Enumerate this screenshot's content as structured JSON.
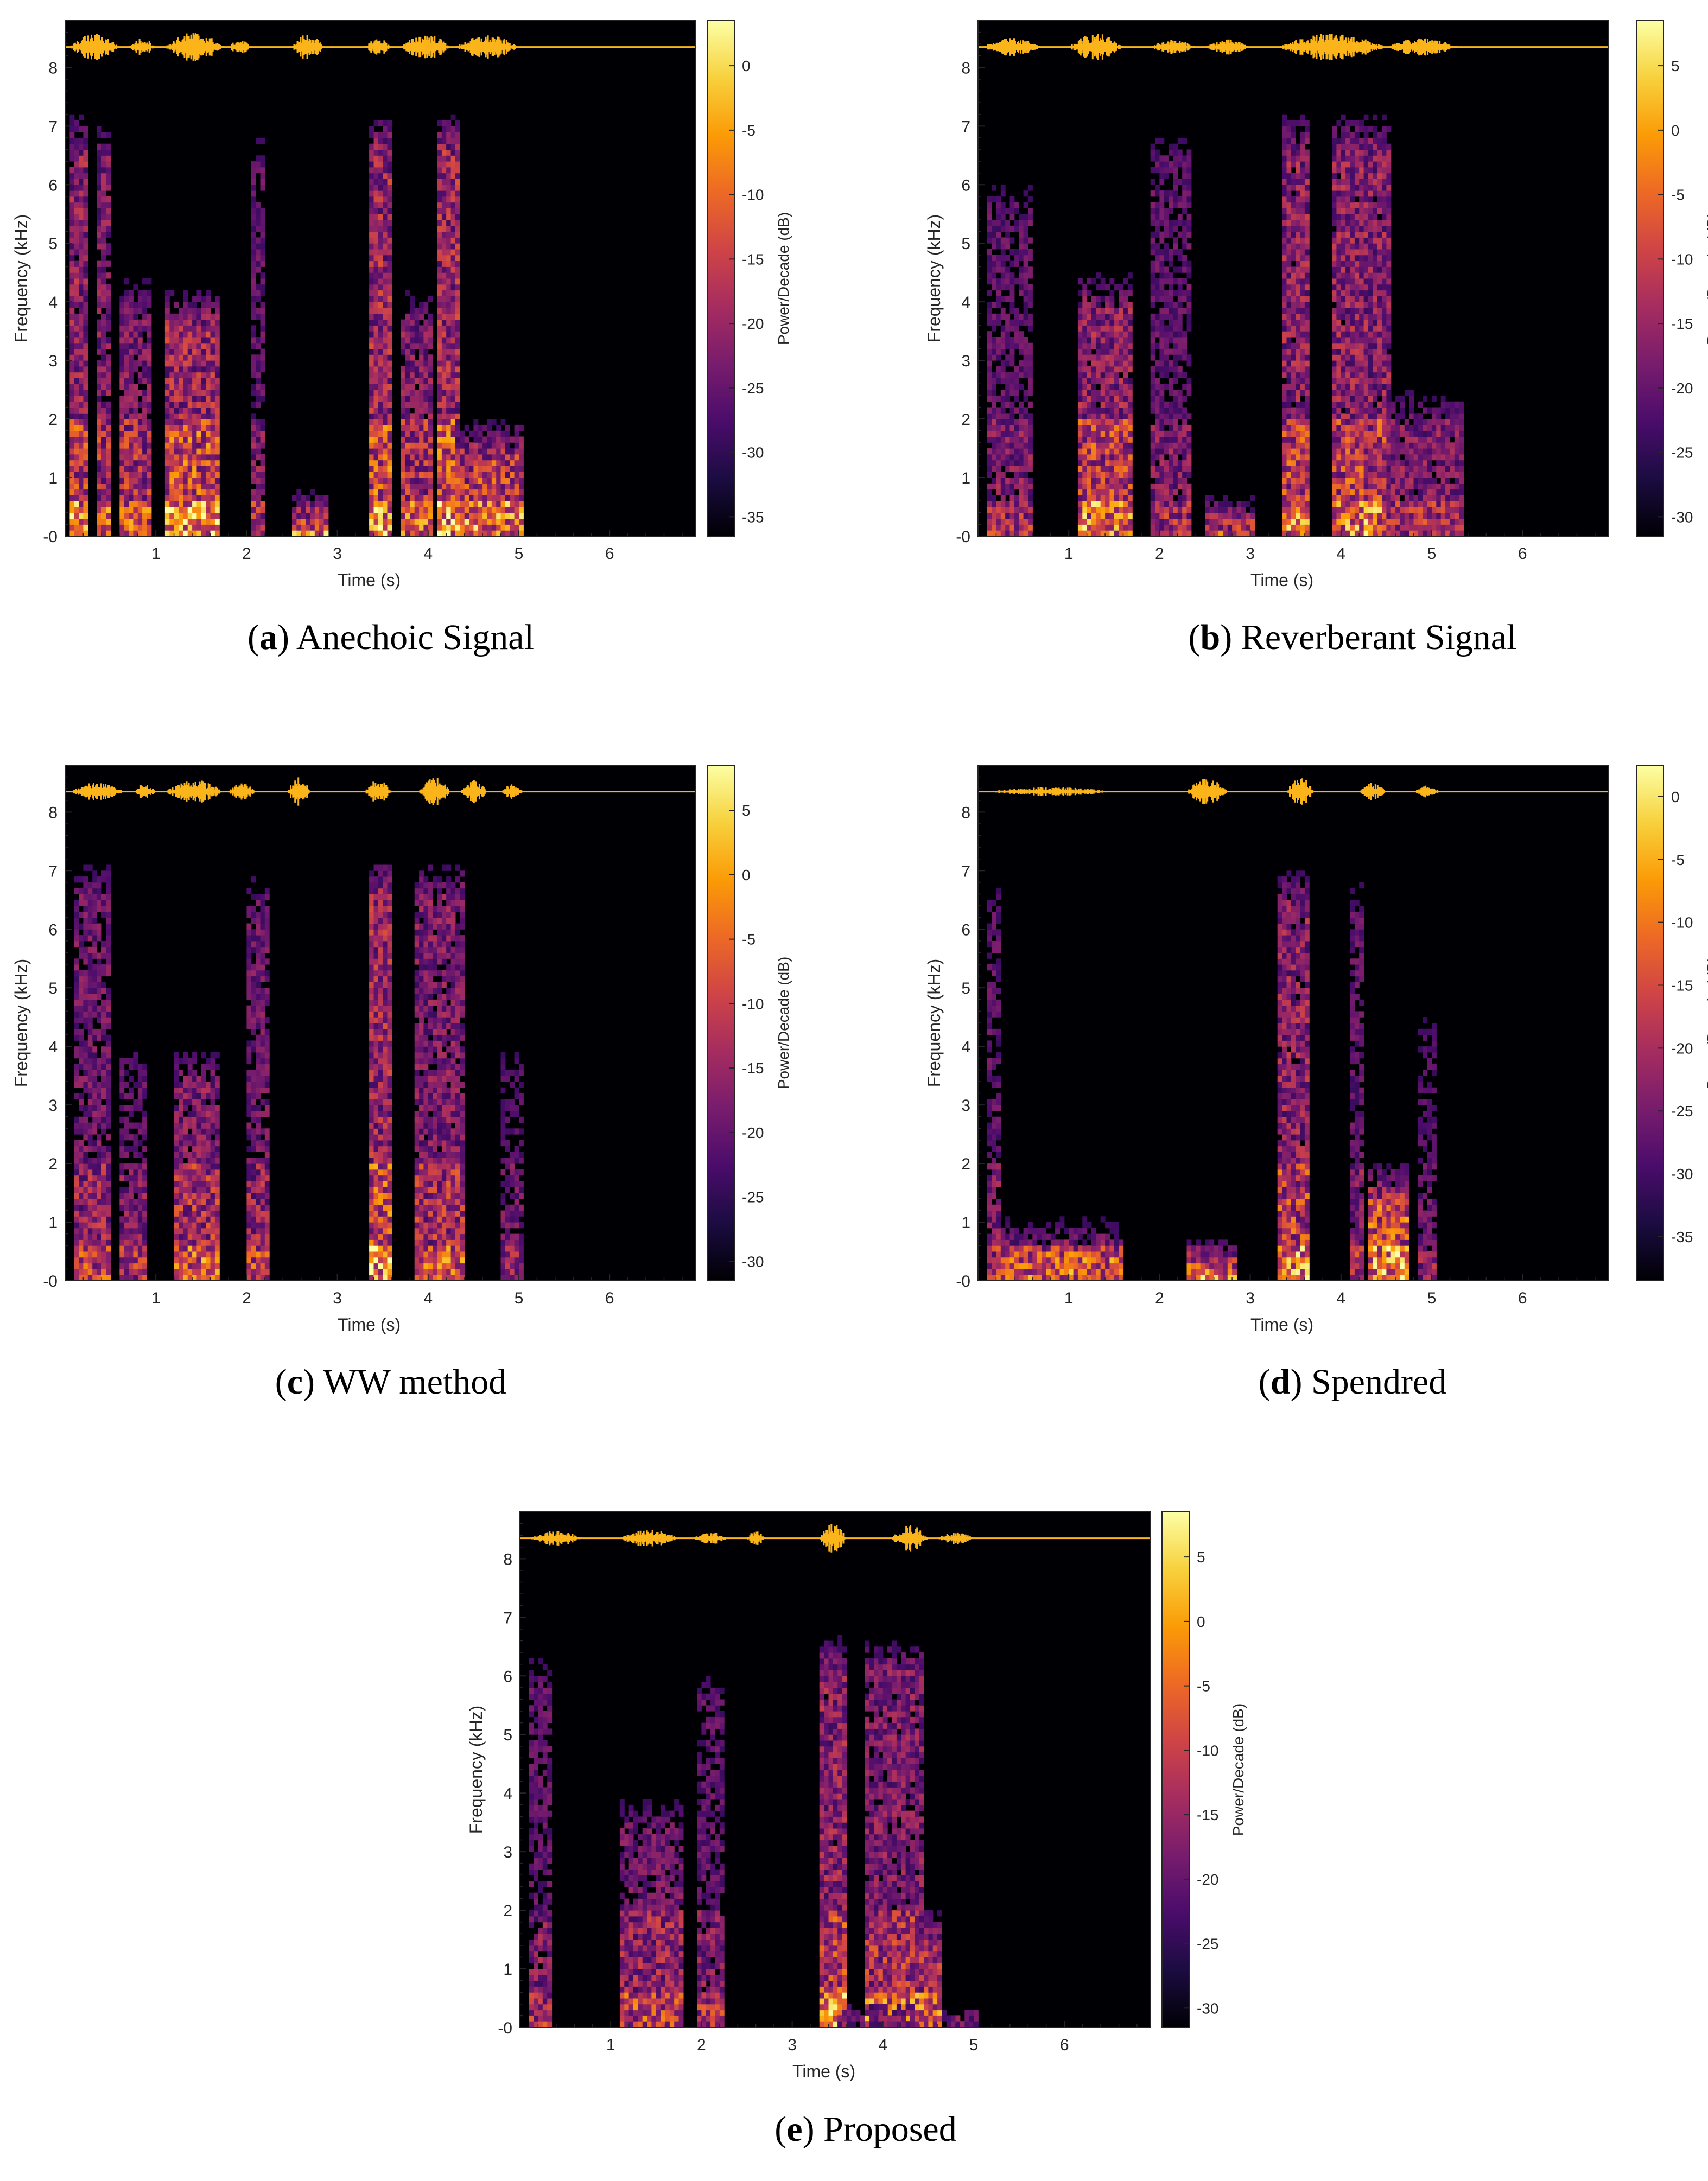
{
  "figure": {
    "description_free": true
  },
  "colormap": [
    "#000004",
    "#1b0c41",
    "#4a0c6b",
    "#781c6d",
    "#a52c60",
    "#cf4446",
    "#ed6925",
    "#fb9b06",
    "#f7d13d",
    "#fcffa4"
  ],
  "waveform_color": "#fbb41a",
  "chart_data": [
    {
      "id": "a",
      "type": "heatmap",
      "caption_letter": "a",
      "caption_text": "Anechoic Signal",
      "xlabel": "Time (s)",
      "ylabel": "Frequency (kHz)",
      "colorbar_label": "Power/Decade (dB)",
      "xlim": [
        0,
        6.95
      ],
      "ylim": [
        0,
        8.8
      ],
      "xticks": [
        1,
        2,
        3,
        4,
        5,
        6
      ],
      "yticks": [
        0,
        1,
        2,
        3,
        4,
        5,
        6,
        7,
        8
      ],
      "ytick_labels": [
        "-0",
        "1",
        "2",
        "3",
        "4",
        "5",
        "6",
        "7",
        "8"
      ],
      "clim": [
        -36.5,
        3.5
      ],
      "colorbar_ticks": [
        0,
        -5,
        -10,
        -15,
        -20,
        -25,
        -30,
        -35
      ],
      "signal_end_s": 5.0,
      "waveform_bursts": [
        [
          0.05,
          0.6,
          0.9
        ],
        [
          0.7,
          1.0,
          0.6
        ],
        [
          1.1,
          1.75,
          1.0
        ],
        [
          1.8,
          2.05,
          0.5
        ],
        [
          2.5,
          2.85,
          0.9
        ],
        [
          3.3,
          3.6,
          0.6
        ],
        [
          3.7,
          4.25,
          0.9
        ],
        [
          4.3,
          5.0,
          0.8
        ]
      ],
      "segments": [
        {
          "t0": 0.05,
          "t1": 0.25,
          "f0": 0.0,
          "f1": 7.5,
          "i": 0.9
        },
        {
          "t0": 0.35,
          "t1": 0.45,
          "f0": 0.0,
          "f1": 7.4,
          "i": 0.8
        },
        {
          "t0": 0.6,
          "t1": 0.95,
          "f0": 0.0,
          "f1": 4.7,
          "i": 0.8
        },
        {
          "t0": 1.1,
          "t1": 1.7,
          "f0": 0.0,
          "f1": 4.5,
          "i": 1.0
        },
        {
          "t0": 2.05,
          "t1": 2.15,
          "f0": 0.0,
          "f1": 7.3,
          "i": 0.6
        },
        {
          "t0": 2.5,
          "t1": 2.85,
          "f0": 0.0,
          "f1": 1.0,
          "i": 0.9
        },
        {
          "t0": 3.35,
          "t1": 3.55,
          "f0": 0.0,
          "f1": 7.5,
          "i": 1.0
        },
        {
          "t0": 3.7,
          "t1": 4.0,
          "f0": 0.0,
          "f1": 4.5,
          "i": 0.8
        },
        {
          "t0": 4.1,
          "t1": 4.3,
          "f0": 0.0,
          "f1": 7.5,
          "i": 1.0
        },
        {
          "t0": 4.3,
          "t1": 5.0,
          "f0": 0.0,
          "f1": 2.2,
          "i": 0.9
        }
      ]
    },
    {
      "id": "b",
      "type": "heatmap",
      "caption_letter": "b",
      "caption_text": "Reverberant Signal",
      "xlabel": "Time (s)",
      "ylabel": "Frequency (kHz)",
      "colorbar_label": "Power/Decade (dB)",
      "xlim": [
        0,
        6.95
      ],
      "ylim": [
        0,
        8.8
      ],
      "xticks": [
        1,
        2,
        3,
        4,
        5,
        6
      ],
      "yticks": [
        0,
        1,
        2,
        3,
        4,
        5,
        6,
        7,
        8
      ],
      "ytick_labels": [
        "-0",
        "1",
        "2",
        "3",
        "4",
        "5",
        "6",
        "7",
        "8"
      ],
      "clim": [
        -31.5,
        8.5
      ],
      "colorbar_ticks": [
        5,
        0,
        -5,
        -10,
        -15,
        -20,
        -25,
        -30
      ],
      "signal_end_s": 5.3,
      "waveform_bursts": [
        [
          0.05,
          0.7,
          0.6
        ],
        [
          1.0,
          1.6,
          0.9
        ],
        [
          1.9,
          2.4,
          0.5
        ],
        [
          2.5,
          3.0,
          0.5
        ],
        [
          3.3,
          4.5,
          0.9
        ],
        [
          4.5,
          5.3,
          0.6
        ]
      ],
      "segments": [
        {
          "t0": 0.1,
          "t1": 0.6,
          "f0": 0.0,
          "f1": 6.5,
          "i": 0.6
        },
        {
          "t0": 1.1,
          "t1": 1.7,
          "f0": 0.0,
          "f1": 4.8,
          "i": 0.9
        },
        {
          "t0": 1.9,
          "t1": 2.3,
          "f0": 0.0,
          "f1": 7.3,
          "i": 0.6
        },
        {
          "t0": 2.5,
          "t1": 3.0,
          "f0": 0.0,
          "f1": 1.0,
          "i": 0.7
        },
        {
          "t0": 3.35,
          "t1": 3.6,
          "f0": 0.0,
          "f1": 7.5,
          "i": 0.9
        },
        {
          "t0": 3.9,
          "t1": 4.5,
          "f0": 0.0,
          "f1": 7.5,
          "i": 0.9
        },
        {
          "t0": 4.5,
          "t1": 5.3,
          "f0": 0.0,
          "f1": 3.0,
          "i": 0.6
        }
      ]
    },
    {
      "id": "c",
      "type": "heatmap",
      "caption_letter": "c",
      "caption_text": "WW method",
      "xlabel": "Time (s)",
      "ylabel": "Frequency (kHz)",
      "colorbar_label": "Power/Decade (dB)",
      "xlim": [
        0,
        6.95
      ],
      "ylim": [
        0,
        8.8
      ],
      "xticks": [
        1,
        2,
        3,
        4,
        5,
        6
      ],
      "yticks": [
        0,
        1,
        2,
        3,
        4,
        5,
        6,
        7,
        8
      ],
      "ytick_labels": [
        "-0",
        "1",
        "2",
        "3",
        "4",
        "5",
        "6",
        "7",
        "8"
      ],
      "clim": [
        -31.5,
        8.5
      ],
      "colorbar_ticks": [
        5,
        0,
        -5,
        -10,
        -15,
        -20,
        -25,
        -30
      ],
      "signal_end_s": 5.3,
      "waveform_bursts": [
        [
          0.05,
          0.65,
          0.6
        ],
        [
          0.75,
          1.0,
          0.5
        ],
        [
          1.1,
          1.75,
          0.8
        ],
        [
          1.8,
          2.1,
          0.6
        ],
        [
          2.45,
          2.7,
          1.0
        ],
        [
          3.3,
          3.6,
          0.8
        ],
        [
          3.9,
          4.25,
          1.0
        ],
        [
          4.35,
          4.65,
          0.8
        ],
        [
          4.8,
          5.05,
          0.5
        ]
      ],
      "segments": [
        {
          "t0": 0.1,
          "t1": 0.45,
          "f0": 0.0,
          "f1": 7.5,
          "i": 0.7
        },
        {
          "t0": 0.6,
          "t1": 0.9,
          "f0": 0.0,
          "f1": 4.5,
          "i": 0.6
        },
        {
          "t0": 1.2,
          "t1": 1.7,
          "f0": 0.0,
          "f1": 4.3,
          "i": 0.8
        },
        {
          "t0": 2.0,
          "t1": 2.2,
          "f0": 0.0,
          "f1": 7.3,
          "i": 0.7
        },
        {
          "t0": 3.35,
          "t1": 3.55,
          "f0": 0.0,
          "f1": 7.5,
          "i": 1.0
        },
        {
          "t0": 3.85,
          "t1": 4.35,
          "f0": 0.0,
          "f1": 7.5,
          "i": 0.8
        },
        {
          "t0": 4.8,
          "t1": 5.0,
          "f0": 0.0,
          "f1": 4.5,
          "i": 0.5
        }
      ]
    },
    {
      "id": "d",
      "type": "heatmap",
      "caption_letter": "d",
      "caption_text": "Spendred",
      "xlabel": "Time (s)",
      "ylabel": "Frequency (kHz)",
      "colorbar_label": "Power/Decade (dB)",
      "xlim": [
        0,
        6.95
      ],
      "ylim": [
        0,
        8.8
      ],
      "xticks": [
        1,
        2,
        3,
        4,
        5,
        6
      ],
      "yticks": [
        0,
        1,
        2,
        3,
        4,
        5,
        6,
        7,
        8
      ],
      "ytick_labels": [
        "-0",
        "1",
        "2",
        "3",
        "4",
        "5",
        "6",
        "7",
        "8"
      ],
      "clim": [
        -38.5,
        2.5
      ],
      "colorbar_ticks": [
        0,
        -5,
        -10,
        -15,
        -20,
        -25,
        -30,
        -35
      ],
      "signal_end_s": 5.2,
      "waveform_bursts": [
        [
          0.1,
          1.5,
          0.3
        ],
        [
          2.3,
          2.75,
          0.9
        ],
        [
          3.4,
          3.7,
          1.0
        ],
        [
          4.2,
          4.5,
          0.6
        ],
        [
          4.8,
          5.1,
          0.4
        ]
      ],
      "segments": [
        {
          "t0": 0.1,
          "t1": 0.25,
          "f0": 0.0,
          "f1": 7.2,
          "i": 0.6
        },
        {
          "t0": 0.2,
          "t1": 1.6,
          "f0": 0.0,
          "f1": 1.3,
          "i": 0.8
        },
        {
          "t0": 2.3,
          "t1": 2.8,
          "f0": 0.0,
          "f1": 0.9,
          "i": 1.0
        },
        {
          "t0": 3.3,
          "t1": 3.6,
          "f0": 0.0,
          "f1": 7.3,
          "i": 0.9
        },
        {
          "t0": 4.1,
          "t1": 4.2,
          "f0": 0.0,
          "f1": 7.3,
          "i": 0.6
        },
        {
          "t0": 4.3,
          "t1": 4.7,
          "f0": 0.0,
          "f1": 2.2,
          "i": 1.0
        },
        {
          "t0": 4.85,
          "t1": 5.0,
          "f0": 0.0,
          "f1": 5.0,
          "i": 0.5
        }
      ]
    },
    {
      "id": "e",
      "type": "heatmap",
      "caption_letter": "e",
      "caption_text": "Proposed",
      "xlabel": "Time (s)",
      "ylabel": "Frequency (kHz)",
      "colorbar_label": "Power/Decade (dB)",
      "xlim": [
        0,
        6.95
      ],
      "ylim": [
        0,
        8.8
      ],
      "xticks": [
        1,
        2,
        3,
        4,
        5,
        6
      ],
      "yticks": [
        0,
        1,
        2,
        3,
        4,
        5,
        6,
        7,
        8
      ],
      "ytick_labels": [
        "-0",
        "1",
        "2",
        "3",
        "4",
        "5",
        "6",
        "7",
        "8"
      ],
      "clim": [
        -31.5,
        8.5
      ],
      "colorbar_ticks": [
        5,
        0,
        -5,
        -10,
        -15,
        -20,
        -25,
        -30
      ],
      "signal_end_s": 5.1,
      "waveform_bursts": [
        [
          0.1,
          0.7,
          0.5
        ],
        [
          1.1,
          1.75,
          0.6
        ],
        [
          1.9,
          2.3,
          0.4
        ],
        [
          2.5,
          2.7,
          0.5
        ],
        [
          3.3,
          3.6,
          1.0
        ],
        [
          4.1,
          4.5,
          0.9
        ],
        [
          4.6,
          5.0,
          0.4
        ]
      ],
      "segments": [
        {
          "t0": 0.1,
          "t1": 0.35,
          "f0": 0.0,
          "f1": 6.8,
          "i": 0.6
        },
        {
          "t0": 1.1,
          "t1": 1.8,
          "f0": 0.0,
          "f1": 4.3,
          "i": 0.7
        },
        {
          "t0": 1.95,
          "t1": 2.2,
          "f0": 0.0,
          "f1": 6.5,
          "i": 0.6
        },
        {
          "t0": 3.3,
          "t1": 3.55,
          "f0": 0.0,
          "f1": 7.0,
          "i": 0.9
        },
        {
          "t0": 3.8,
          "t1": 4.4,
          "f0": 0.0,
          "f1": 7.0,
          "i": 0.8
        },
        {
          "t0": 3.5,
          "t1": 5.0,
          "f0": 0.0,
          "f1": 0.6,
          "i": 0.8
        },
        {
          "t0": 4.35,
          "t1": 4.6,
          "f0": 0.0,
          "f1": 2.3,
          "i": 0.8
        }
      ]
    }
  ]
}
